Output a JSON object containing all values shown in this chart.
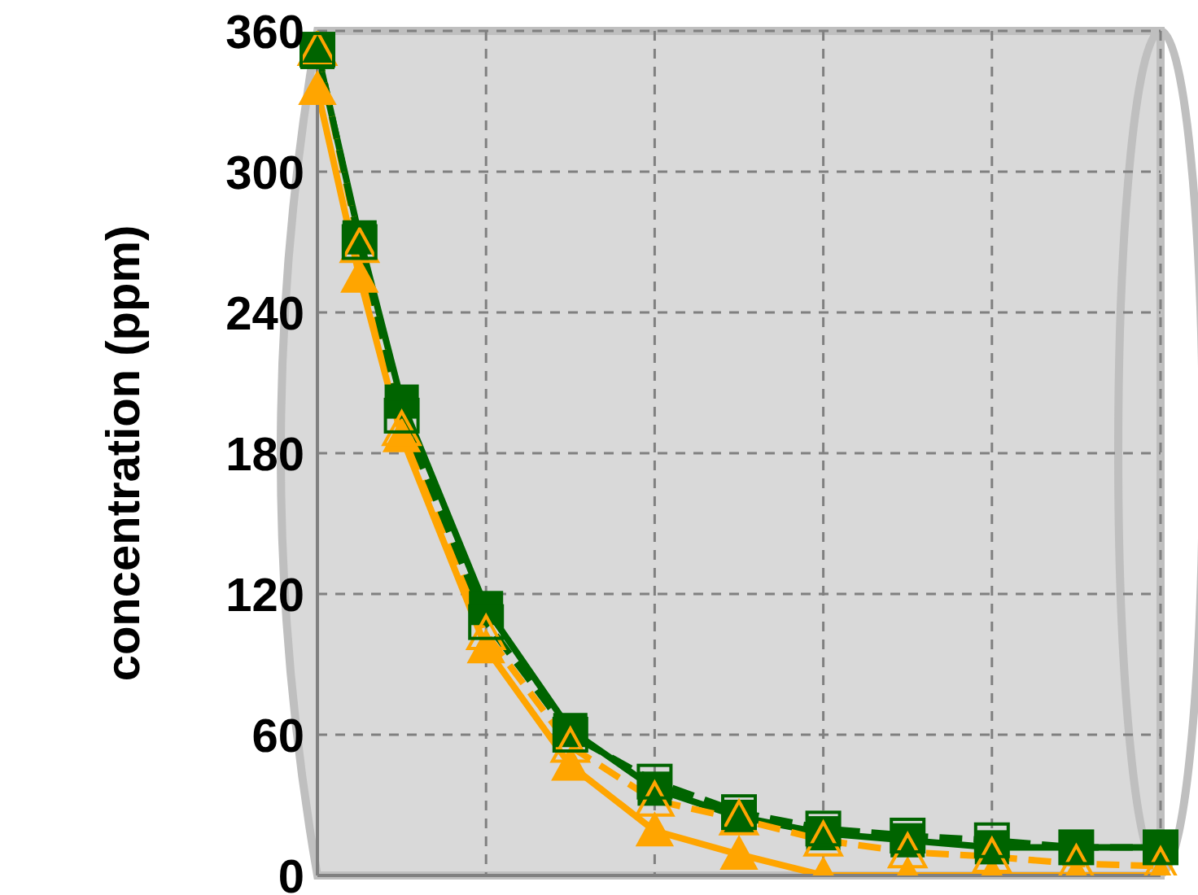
{
  "chart_data": {
    "type": "line",
    "ylabel": "concentration (ppm)",
    "categories": [
      null,
      null,
      null,
      null,
      null,
      null,
      null,
      null,
      null,
      null,
      null,
      null,
      null,
      null,
      null,
      null,
      null,
      null,
      null,
      null,
      null
    ],
    "ylim": [
      0,
      360
    ],
    "yticks": [
      0,
      60,
      120,
      180,
      240,
      300,
      360
    ],
    "grid": true,
    "tick_labels": "y",
    "series": [
      {
        "color": "#ffa500",
        "marker": "triangle",
        "line_style": "solid",
        "values": [
          335,
          255,
          187,
          null,
          97,
          null,
          47,
          null,
          19,
          null,
          9,
          null,
          0,
          null,
          0,
          null,
          0,
          null,
          0,
          null,
          0
        ]
      },
      {
        "color": "#006400",
        "marker": "square",
        "line_style": "solid",
        "values": [
          351,
          272,
          202,
          null,
          114,
          null,
          62,
          null,
          37,
          null,
          25,
          null,
          18,
          null,
          15,
          null,
          12,
          null,
          12,
          null,
          12
        ]
      },
      {
        "color": "#ffa500",
        "marker": "triangle",
        "line_style": "dashed",
        "values": [
          352,
          268,
          190,
          null,
          103,
          null,
          55,
          null,
          32,
          null,
          24,
          null,
          15,
          null,
          10,
          null,
          8,
          null,
          5,
          null,
          4
        ]
      },
      {
        "color": "#006400",
        "marker": "square",
        "line_style": "dashed",
        "values": [
          352,
          270,
          196,
          null,
          108,
          null,
          60,
          null,
          40,
          null,
          27,
          null,
          20,
          null,
          17,
          null,
          15,
          null,
          12,
          null,
          12
        ]
      }
    ]
  }
}
